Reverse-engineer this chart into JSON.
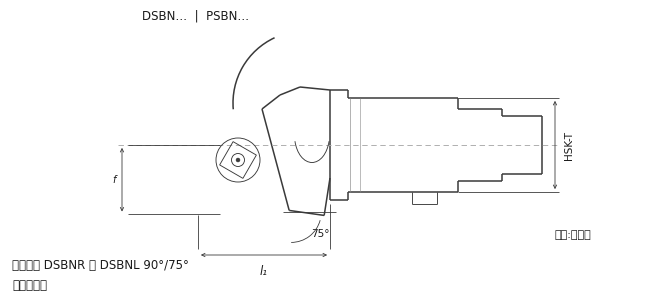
{
  "title_top": "DSBN…  |  PSBN…",
  "bottom_line1": "车刀刀体 DSBNR ｜ DSBNL 90°/75°",
  "bottom_line2": "负前角刀片",
  "view_label": "视图:右款式",
  "hsk_label": "HSK-T",
  "l1_label": "l₁",
  "angle_label": "75°",
  "bg_color": "#ffffff",
  "line_color": "#3a3a3a",
  "dim_color": "#3a3a3a",
  "dash_color": "#aaaaaa",
  "text_color": "#1a1a1a",
  "fig_width": 6.7,
  "fig_height": 2.97,
  "dpi": 100
}
